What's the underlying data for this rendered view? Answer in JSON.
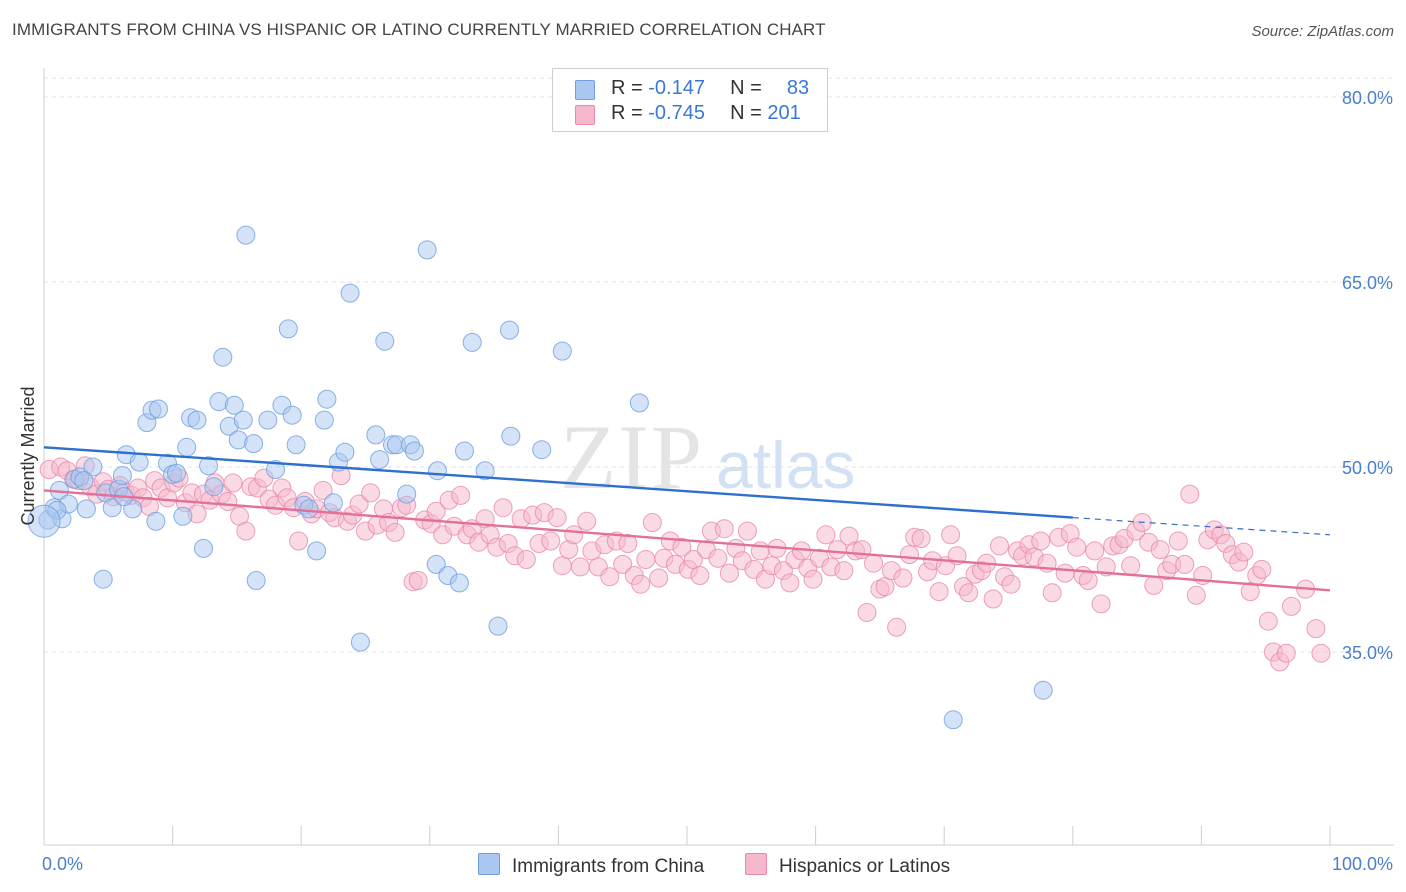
{
  "title": "IMMIGRANTS FROM CHINA VS HISPANIC OR LATINO CURRENTLY MARRIED CORRELATION CHART",
  "source": "Source: ZipAtlas.com",
  "watermark": {
    "zip": "ZIP",
    "atlas": "atlas"
  },
  "legend": {
    "rows": [
      {
        "r_label": "R =",
        "r_value": "-0.147",
        "n_label": "N =",
        "n_value": "83",
        "color": "#a9c7f0"
      },
      {
        "r_label": "R =",
        "r_value": "-0.745",
        "n_label": "N =",
        "n_value": "201",
        "color": "#f5b8cc"
      }
    ]
  },
  "bottom_legend": [
    {
      "label": "Immigrants from China",
      "color": "#a9c7f0"
    },
    {
      "label": "Hispanics or Latinos",
      "color": "#f5b8cc"
    }
  ],
  "chart_data": {
    "type": "scatter",
    "ylabel": "Currently Married",
    "xlabel": "",
    "x_tick_labels": [
      "0.0%",
      "100.0%"
    ],
    "y_tick_labels": [
      "80.0%",
      "65.0%",
      "50.0%",
      "35.0%"
    ],
    "y_ticks": [
      80,
      65,
      50,
      35
    ],
    "xlim": [
      0,
      100
    ],
    "ylim": [
      22,
      83
    ],
    "grid": true,
    "series": [
      {
        "name": "Immigrants from China",
        "color": "#6f9fde",
        "fill": "#a9c7f0",
        "trend": {
          "x0": 0,
          "y0": 51.6,
          "x1": 80,
          "y1": 45.9,
          "dash_to_x": 100,
          "dash_to_y": 44.5
        },
        "points": [
          [
            0.3,
            45.7
          ],
          [
            0.8,
            46.7
          ],
          [
            1.2,
            48.1
          ],
          [
            1.4,
            45.8
          ],
          [
            1.9,
            47.0
          ],
          [
            2.4,
            49.0
          ],
          [
            2.8,
            49.2
          ],
          [
            3.3,
            46.6
          ],
          [
            3.8,
            50.0
          ],
          [
            4.6,
            40.9
          ],
          [
            4.8,
            47.9
          ],
          [
            5.3,
            46.7
          ],
          [
            5.8,
            48.2
          ],
          [
            6.1,
            49.3
          ],
          [
            6.4,
            51.0
          ],
          [
            6.9,
            46.6
          ],
          [
            7.4,
            50.4
          ],
          [
            8.0,
            53.6
          ],
          [
            8.4,
            54.6
          ],
          [
            8.7,
            45.6
          ],
          [
            8.9,
            54.7
          ],
          [
            9.6,
            50.3
          ],
          [
            10.0,
            49.4
          ],
          [
            10.3,
            49.5
          ],
          [
            10.8,
            46.0
          ],
          [
            11.1,
            51.6
          ],
          [
            11.4,
            54.0
          ],
          [
            11.9,
            53.8
          ],
          [
            12.4,
            43.4
          ],
          [
            12.8,
            50.1
          ],
          [
            13.2,
            48.4
          ],
          [
            13.6,
            55.3
          ],
          [
            13.9,
            58.9
          ],
          [
            14.4,
            53.3
          ],
          [
            14.8,
            55.0
          ],
          [
            15.1,
            52.2
          ],
          [
            15.5,
            53.8
          ],
          [
            15.7,
            68.8
          ],
          [
            16.3,
            51.9
          ],
          [
            16.5,
            40.8
          ],
          [
            17.4,
            53.8
          ],
          [
            18.0,
            49.8
          ],
          [
            18.5,
            55.0
          ],
          [
            19.0,
            61.2
          ],
          [
            19.3,
            54.2
          ],
          [
            19.6,
            51.8
          ],
          [
            20.2,
            46.9
          ],
          [
            20.6,
            46.6
          ],
          [
            21.2,
            43.2
          ],
          [
            21.8,
            53.8
          ],
          [
            22.0,
            55.5
          ],
          [
            22.5,
            47.1
          ],
          [
            22.9,
            50.4
          ],
          [
            23.4,
            51.2
          ],
          [
            23.8,
            64.1
          ],
          [
            24.6,
            35.8
          ],
          [
            25.8,
            52.6
          ],
          [
            26.1,
            50.6
          ],
          [
            26.5,
            60.2
          ],
          [
            27.1,
            51.8
          ],
          [
            27.4,
            51.8
          ],
          [
            28.2,
            47.8
          ],
          [
            28.5,
            51.8
          ],
          [
            28.8,
            51.3
          ],
          [
            29.8,
            67.6
          ],
          [
            30.5,
            42.1
          ],
          [
            30.6,
            49.7
          ],
          [
            31.4,
            41.2
          ],
          [
            32.3,
            40.6
          ],
          [
            32.7,
            51.3
          ],
          [
            33.3,
            60.1
          ],
          [
            34.3,
            49.7
          ],
          [
            35.3,
            37.1
          ],
          [
            36.2,
            61.1
          ],
          [
            36.3,
            52.5
          ],
          [
            38.7,
            51.4
          ],
          [
            40.3,
            59.4
          ],
          [
            46.3,
            55.2
          ],
          [
            70.7,
            29.5
          ],
          [
            77.7,
            31.9
          ],
          [
            1.0,
            46.5
          ],
          [
            3.1,
            48.9
          ],
          [
            6.2,
            47.6
          ]
        ]
      },
      {
        "name": "Hispanics or Latinos",
        "color": "#e98aa9",
        "fill": "#f5b8cc",
        "trend": {
          "x0": 0,
          "y0": 48.1,
          "x1": 100,
          "y1": 40.0
        },
        "points": [
          [
            0.4,
            49.8
          ],
          [
            1.3,
            50.0
          ],
          [
            1.8,
            49.7
          ],
          [
            2.3,
            49.0
          ],
          [
            2.7,
            48.9
          ],
          [
            3.2,
            50.1
          ],
          [
            3.6,
            48.4
          ],
          [
            4.1,
            47.8
          ],
          [
            4.6,
            48.8
          ],
          [
            5.0,
            48.2
          ],
          [
            5.4,
            47.6
          ],
          [
            5.9,
            48.5
          ],
          [
            6.3,
            48.0
          ],
          [
            6.8,
            47.7
          ],
          [
            7.3,
            48.3
          ],
          [
            7.7,
            47.5
          ],
          [
            8.2,
            46.8
          ],
          [
            8.6,
            48.9
          ],
          [
            9.1,
            48.3
          ],
          [
            9.6,
            47.5
          ],
          [
            10.1,
            48.7
          ],
          [
            10.5,
            49.1
          ],
          [
            11.0,
            47.1
          ],
          [
            11.5,
            47.9
          ],
          [
            11.9,
            46.2
          ],
          [
            12.4,
            47.8
          ],
          [
            12.9,
            47.3
          ],
          [
            13.3,
            48.7
          ],
          [
            13.8,
            47.8
          ],
          [
            14.3,
            47.2
          ],
          [
            14.7,
            48.7
          ],
          [
            15.2,
            46.0
          ],
          [
            15.7,
            44.8
          ],
          [
            16.1,
            48.4
          ],
          [
            16.6,
            48.3
          ],
          [
            17.1,
            49.1
          ],
          [
            17.5,
            47.4
          ],
          [
            18.0,
            46.9
          ],
          [
            18.5,
            48.3
          ],
          [
            18.9,
            47.5
          ],
          [
            19.4,
            46.7
          ],
          [
            19.8,
            44.0
          ],
          [
            20.3,
            47.2
          ],
          [
            20.8,
            46.2
          ],
          [
            21.2,
            46.6
          ],
          [
            21.7,
            48.1
          ],
          [
            22.2,
            46.3
          ],
          [
            22.6,
            45.9
          ],
          [
            23.1,
            49.3
          ],
          [
            23.6,
            45.6
          ],
          [
            24.0,
            46.1
          ],
          [
            24.5,
            47.0
          ],
          [
            25.0,
            44.8
          ],
          [
            25.4,
            47.9
          ],
          [
            25.9,
            45.3
          ],
          [
            26.4,
            46.6
          ],
          [
            26.8,
            45.5
          ],
          [
            27.3,
            44.7
          ],
          [
            27.8,
            46.7
          ],
          [
            28.2,
            46.9
          ],
          [
            28.7,
            40.7
          ],
          [
            29.1,
            40.8
          ],
          [
            29.6,
            45.7
          ],
          [
            30.1,
            45.4
          ],
          [
            30.5,
            46.4
          ],
          [
            31.0,
            44.5
          ],
          [
            31.5,
            47.3
          ],
          [
            31.9,
            45.2
          ],
          [
            32.4,
            47.7
          ],
          [
            32.9,
            44.5
          ],
          [
            33.3,
            45.0
          ],
          [
            33.8,
            43.9
          ],
          [
            34.3,
            45.8
          ],
          [
            34.7,
            44.5
          ],
          [
            35.2,
            43.5
          ],
          [
            35.7,
            46.7
          ],
          [
            36.1,
            43.8
          ],
          [
            36.6,
            42.8
          ],
          [
            37.1,
            45.8
          ],
          [
            37.5,
            42.5
          ],
          [
            38.0,
            46.1
          ],
          [
            38.5,
            43.8
          ],
          [
            38.9,
            46.3
          ],
          [
            39.4,
            44.0
          ],
          [
            39.9,
            45.9
          ],
          [
            40.3,
            42.0
          ],
          [
            40.8,
            43.3
          ],
          [
            41.2,
            44.5
          ],
          [
            41.7,
            41.9
          ],
          [
            42.2,
            45.6
          ],
          [
            42.6,
            43.2
          ],
          [
            43.1,
            41.9
          ],
          [
            43.6,
            43.7
          ],
          [
            44.0,
            41.1
          ],
          [
            44.5,
            44.0
          ],
          [
            45.0,
            42.1
          ],
          [
            45.4,
            43.8
          ],
          [
            45.9,
            41.2
          ],
          [
            46.4,
            40.5
          ],
          [
            46.8,
            42.5
          ],
          [
            47.3,
            45.5
          ],
          [
            47.8,
            41.0
          ],
          [
            48.2,
            42.6
          ],
          [
            48.7,
            44.0
          ],
          [
            49.1,
            42.1
          ],
          [
            49.6,
            43.5
          ],
          [
            50.1,
            41.7
          ],
          [
            50.5,
            42.5
          ],
          [
            51.0,
            41.2
          ],
          [
            51.5,
            43.3
          ],
          [
            51.9,
            44.8
          ],
          [
            52.4,
            42.6
          ],
          [
            52.9,
            45.0
          ],
          [
            53.3,
            41.4
          ],
          [
            53.8,
            43.4
          ],
          [
            54.3,
            42.4
          ],
          [
            54.7,
            44.8
          ],
          [
            55.2,
            41.7
          ],
          [
            55.7,
            43.2
          ],
          [
            56.1,
            40.9
          ],
          [
            56.6,
            42.0
          ],
          [
            57.0,
            43.4
          ],
          [
            57.5,
            41.6
          ],
          [
            58.0,
            40.6
          ],
          [
            58.4,
            42.5
          ],
          [
            58.9,
            43.2
          ],
          [
            59.4,
            41.8
          ],
          [
            59.8,
            40.9
          ],
          [
            60.3,
            42.6
          ],
          [
            60.8,
            44.5
          ],
          [
            61.2,
            41.9
          ],
          [
            61.7,
            43.3
          ],
          [
            62.2,
            41.6
          ],
          [
            62.6,
            44.4
          ],
          [
            63.1,
            43.2
          ],
          [
            63.6,
            43.3
          ],
          [
            64.0,
            38.2
          ],
          [
            64.5,
            42.2
          ],
          [
            65.0,
            40.1
          ],
          [
            65.4,
            40.3
          ],
          [
            65.9,
            41.6
          ],
          [
            66.3,
            37.0
          ],
          [
            66.8,
            41.0
          ],
          [
            67.3,
            42.9
          ],
          [
            67.7,
            44.3
          ],
          [
            68.2,
            44.2
          ],
          [
            68.7,
            41.5
          ],
          [
            69.1,
            42.4
          ],
          [
            69.6,
            39.9
          ],
          [
            70.1,
            42.0
          ],
          [
            70.5,
            44.5
          ],
          [
            71.0,
            42.8
          ],
          [
            71.5,
            40.3
          ],
          [
            71.9,
            39.8
          ],
          [
            72.4,
            41.3
          ],
          [
            72.9,
            41.6
          ],
          [
            73.3,
            42.2
          ],
          [
            73.8,
            39.3
          ],
          [
            74.3,
            43.6
          ],
          [
            74.7,
            41.1
          ],
          [
            75.2,
            40.5
          ],
          [
            75.7,
            43.2
          ],
          [
            76.1,
            42.8
          ],
          [
            76.6,
            43.7
          ],
          [
            77.0,
            42.7
          ],
          [
            77.5,
            44.0
          ],
          [
            78.0,
            42.2
          ],
          [
            78.4,
            39.8
          ],
          [
            78.9,
            44.3
          ],
          [
            79.4,
            41.4
          ],
          [
            79.8,
            44.6
          ],
          [
            80.3,
            43.5
          ],
          [
            80.8,
            41.2
          ],
          [
            81.2,
            40.8
          ],
          [
            81.7,
            43.2
          ],
          [
            82.2,
            38.9
          ],
          [
            82.6,
            41.9
          ],
          [
            83.1,
            43.6
          ],
          [
            83.6,
            43.7
          ],
          [
            84.0,
            44.2
          ],
          [
            84.5,
            42.0
          ],
          [
            84.9,
            44.8
          ],
          [
            85.4,
            45.5
          ],
          [
            85.9,
            43.9
          ],
          [
            86.3,
            40.4
          ],
          [
            86.8,
            43.3
          ],
          [
            87.3,
            41.6
          ],
          [
            87.7,
            42.1
          ],
          [
            88.2,
            44.0
          ],
          [
            88.7,
            42.1
          ],
          [
            89.1,
            47.8
          ],
          [
            89.6,
            39.6
          ],
          [
            90.1,
            41.2
          ],
          [
            90.5,
            44.1
          ],
          [
            91.0,
            44.9
          ],
          [
            91.5,
            44.5
          ],
          [
            91.9,
            43.8
          ],
          [
            92.4,
            42.9
          ],
          [
            92.9,
            42.3
          ],
          [
            93.3,
            43.1
          ],
          [
            93.8,
            39.9
          ],
          [
            94.3,
            41.2
          ],
          [
            94.7,
            41.7
          ],
          [
            95.2,
            37.5
          ],
          [
            95.6,
            35.0
          ],
          [
            96.1,
            34.2
          ],
          [
            96.6,
            34.9
          ],
          [
            97.0,
            38.7
          ],
          [
            98.1,
            40.1
          ],
          [
            98.9,
            36.9
          ],
          [
            99.3,
            34.9
          ]
        ]
      }
    ]
  }
}
